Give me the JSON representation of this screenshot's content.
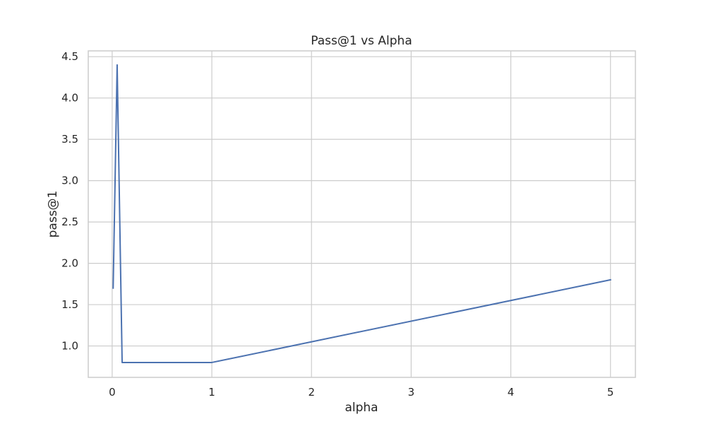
{
  "chart_data": {
    "type": "line",
    "title": "Pass@1 vs Alpha",
    "xlabel": "alpha",
    "ylabel": "pass@1",
    "xlim": [
      -0.24,
      5.25
    ],
    "ylim": [
      0.62,
      4.57
    ],
    "xticks": [
      0,
      1,
      2,
      3,
      4,
      5
    ],
    "yticks": [
      1.0,
      1.5,
      2.0,
      2.5,
      3.0,
      3.5,
      4.0,
      4.5
    ],
    "xtick_labels": [
      "0",
      "1",
      "2",
      "3",
      "4",
      "5"
    ],
    "ytick_labels": [
      "1.0",
      "1.5",
      "2.0",
      "2.5",
      "3.0",
      "3.5",
      "4.0",
      "4.5"
    ],
    "grid": true,
    "series": [
      {
        "x": [
          0.01,
          0.05,
          0.1,
          1.0,
          5.0
        ],
        "y": [
          1.7,
          4.4,
          0.8,
          0.8,
          1.8
        ],
        "color": "#4c72b0"
      }
    ]
  }
}
